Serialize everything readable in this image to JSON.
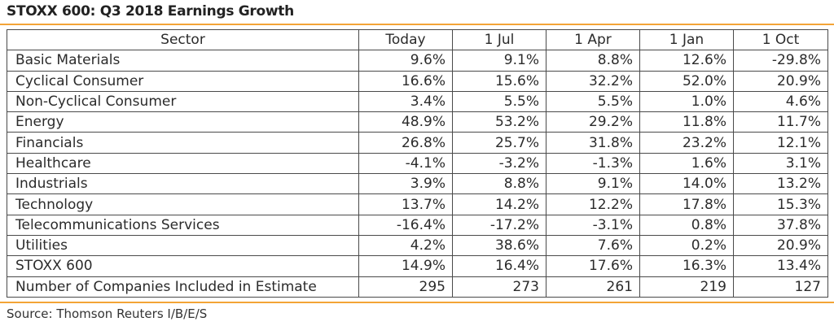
{
  "title": "STOXX 600: Q3 2018 Earnings Growth",
  "source": "Source: Thomson Reuters I/B/E/S",
  "colors": {
    "accent_rule": "#f3a436",
    "grid": "#4a4a4a",
    "text": "#2b2b2b"
  },
  "chart_data": {
    "type": "table",
    "title": "STOXX 600: Q3 2018 Earnings Growth",
    "columns": [
      "Sector",
      "Today",
      "1 Jul",
      "1 Apr",
      "1 Jan",
      "1 Oct"
    ],
    "rows": [
      [
        "Basic Materials",
        "9.6%",
        "9.1%",
        "8.8%",
        "12.6%",
        "-29.8%"
      ],
      [
        "Cyclical Consumer",
        "16.6%",
        "15.6%",
        "32.2%",
        "52.0%",
        "20.9%"
      ],
      [
        "Non-Cyclical Consumer",
        "3.4%",
        "5.5%",
        "5.5%",
        "1.0%",
        "4.6%"
      ],
      [
        "Energy",
        "48.9%",
        "53.2%",
        "29.2%",
        "11.8%",
        "11.7%"
      ],
      [
        "Financials",
        "26.8%",
        "25.7%",
        "31.8%",
        "23.2%",
        "12.1%"
      ],
      [
        "Healthcare",
        "-4.1%",
        "-3.2%",
        "-1.3%",
        "1.6%",
        "3.1%"
      ],
      [
        "Industrials",
        "3.9%",
        "8.8%",
        "9.1%",
        "14.0%",
        "13.2%"
      ],
      [
        "Technology",
        "13.7%",
        "14.2%",
        "12.2%",
        "17.8%",
        "15.3%"
      ],
      [
        "Telecommunications Services",
        "-16.4%",
        "-17.2%",
        "-3.1%",
        "0.8%",
        "37.8%"
      ],
      [
        "Utilities",
        "4.2%",
        "38.6%",
        "7.6%",
        "0.2%",
        "20.9%"
      ],
      [
        "STOXX 600",
        "14.9%",
        "16.4%",
        "17.6%",
        "16.3%",
        "13.4%"
      ],
      [
        "Number of Companies Included in Estimate",
        "295",
        "273",
        "261",
        "219",
        "127"
      ]
    ]
  }
}
